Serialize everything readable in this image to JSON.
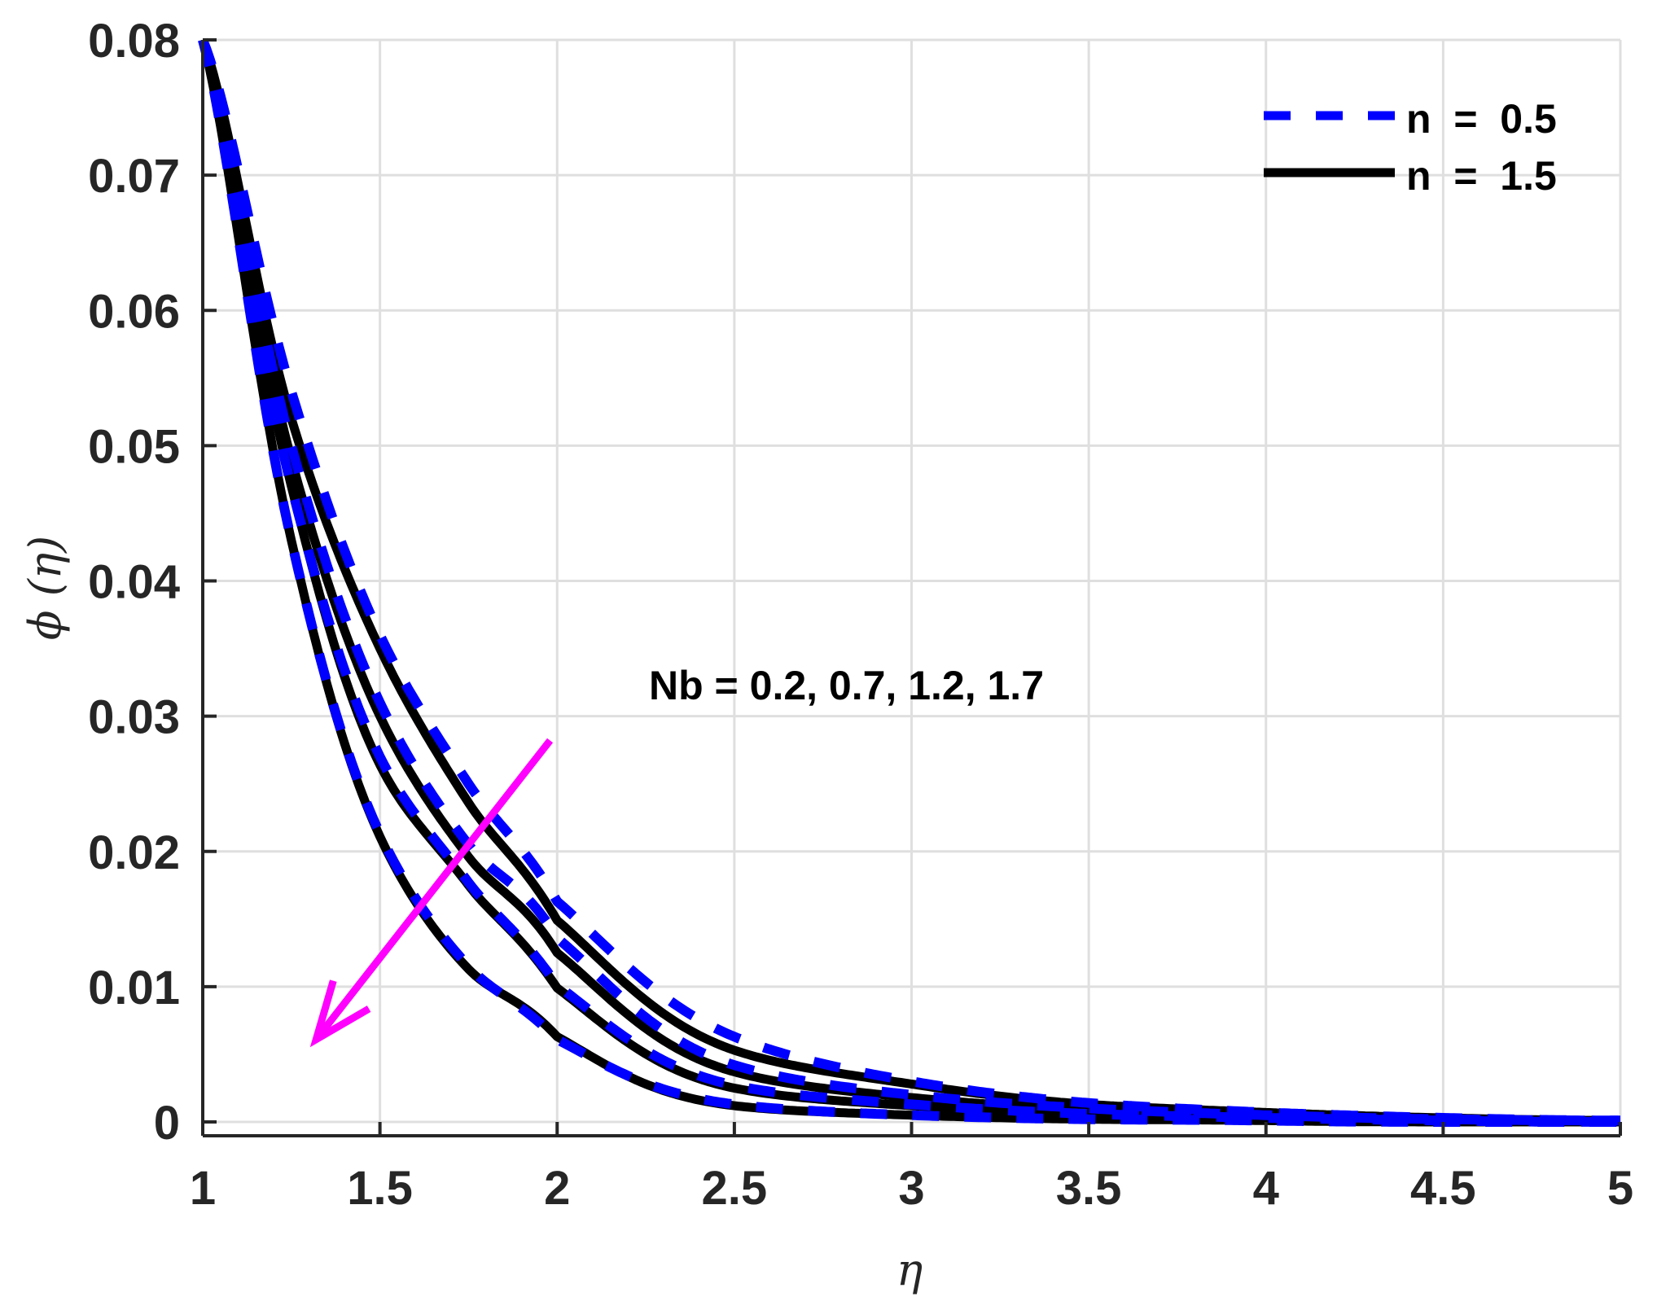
{
  "chart_data": {
    "type": "line",
    "title": "",
    "xlabel": "η",
    "ylabel": "ϕ (η)",
    "xlim": [
      1,
      5
    ],
    "ylim": [
      -0.001,
      0.08
    ],
    "grid": true,
    "legend_position": "top-right",
    "x_ticks": [
      1,
      1.5,
      2,
      2.5,
      3,
      3.5,
      4,
      4.5,
      5
    ],
    "x_tick_labels": [
      "1",
      "1.5",
      "2",
      "2.5",
      "3",
      "3.5",
      "4",
      "4.5",
      "5"
    ],
    "y_ticks": [
      0,
      0.01,
      0.02,
      0.03,
      0.04,
      0.05,
      0.06,
      0.07,
      0.08
    ],
    "y_tick_labels": [
      "0",
      "0.01",
      "0.02",
      "0.03",
      "0.04",
      "0.05",
      "0.06",
      "0.07",
      "0.08"
    ],
    "x": [
      1,
      1.25,
      1.5,
      1.75,
      2,
      2.5,
      3,
      3.5,
      4,
      4.5,
      5
    ],
    "series": [
      {
        "name": "n = 0.5, Nb = 0.2",
        "group": "n = 0.5",
        "Nb": 0.2,
        "style": "dashed",
        "color": "#0000ff",
        "values": [
          0.08,
          0.054,
          0.036,
          0.025,
          0.0163,
          0.0063,
          0.003,
          0.0014,
          0.0007,
          0.0003,
          0.0001
        ]
      },
      {
        "name": "n = 0.5, Nb = 0.7",
        "group": "n = 0.5",
        "Nb": 0.7,
        "style": "dashed",
        "color": "#0000ff",
        "values": [
          0.08,
          0.05,
          0.031,
          0.0205,
          0.0136,
          0.0042,
          0.002,
          0.001,
          0.0005,
          0.0002,
          0.0001
        ]
      },
      {
        "name": "n = 0.5, Nb = 1.2",
        "group": "n = 0.5",
        "Nb": 1.2,
        "style": "dashed",
        "color": "#0000ff",
        "values": [
          0.08,
          0.047,
          0.027,
          0.0177,
          0.0101,
          0.0027,
          0.0013,
          0.0006,
          0.0003,
          0.0001,
          0.0
        ]
      },
      {
        "name": "n = 0.5, Nb = 1.7",
        "group": "n = 0.5",
        "Nb": 1.7,
        "style": "dashed",
        "color": "#0000ff",
        "values": [
          0.08,
          0.043,
          0.0213,
          0.0115,
          0.0061,
          0.0013,
          0.0005,
          0.0002,
          0.0001,
          0.0,
          0.0
        ]
      },
      {
        "name": "n = 1.5, Nb = 0.2",
        "group": "n = 1.5",
        "Nb": 0.2,
        "style": "solid",
        "color": "#000000",
        "values": [
          0.08,
          0.052,
          0.035,
          0.0236,
          0.0149,
          0.0053,
          0.0028,
          0.0013,
          0.0007,
          0.0003,
          0.0001
        ]
      },
      {
        "name": "n = 1.5, Nb = 0.7",
        "group": "n = 1.5",
        "Nb": 0.7,
        "style": "solid",
        "color": "#000000",
        "values": [
          0.08,
          0.049,
          0.03,
          0.0196,
          0.0125,
          0.0037,
          0.0018,
          0.0009,
          0.0005,
          0.0002,
          0.0001
        ]
      },
      {
        "name": "n = 1.5, Nb = 1.2",
        "group": "n = 1.5",
        "Nb": 1.2,
        "style": "solid",
        "color": "#000000",
        "values": [
          0.08,
          0.047,
          0.0264,
          0.0175,
          0.0099,
          0.0025,
          0.0012,
          0.0006,
          0.0003,
          0.0001,
          0.0
        ]
      },
      {
        "name": "n = 1.5, Nb = 1.7",
        "group": "n = 1.5",
        "Nb": 1.7,
        "style": "solid",
        "color": "#000000",
        "values": [
          0.08,
          0.043,
          0.0211,
          0.0113,
          0.0063,
          0.0012,
          0.0005,
          0.0002,
          0.0001,
          0.0,
          0.0
        ]
      }
    ],
    "legend": [
      {
        "label": "n  =  0.5",
        "style": "dashed",
        "color": "#0000ff"
      },
      {
        "label": "n  =  1.5",
        "style": "solid",
        "color": "#000000"
      }
    ],
    "annotations": [
      {
        "text": "Nb = 0.2, 0.7, 1.2, 1.7",
        "x": 2.26,
        "y": 0.0314
      },
      {
        "type": "arrow",
        "color": "#ff00ff",
        "from": [
          1.98,
          0.0282
        ],
        "to": [
          1.32,
          0.0061
        ],
        "label": "increasing Nb"
      }
    ],
    "colors": {
      "grid": "#dfdfdf",
      "axis": "#262626",
      "arrow": "#ff00ff",
      "dashed_series": "#0000ff",
      "solid_series": "#000000"
    }
  }
}
